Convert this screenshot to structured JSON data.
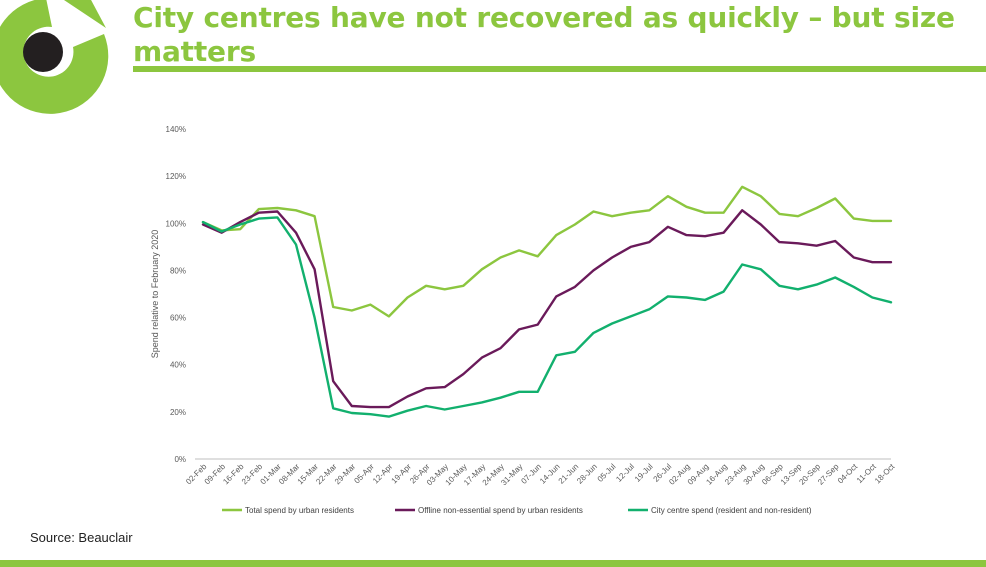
{
  "header": {
    "title": "City centres have not recovered as quickly – but size matters"
  },
  "footer": {
    "source": "Source: Beauclair"
  },
  "colors": {
    "accent": "#8cc63f",
    "total": "#8cc63f",
    "offline": "#6a1a5a",
    "city": "#12b06e",
    "logo_dark": "#231f20"
  },
  "icons": {
    "logo": "ring-logo-icon"
  },
  "chart_data": {
    "type": "line",
    "ylabel": "Spend relative to February 2020",
    "xlabel": "",
    "ylim": [
      0,
      140
    ],
    "yticks": [
      0,
      20,
      40,
      60,
      80,
      100,
      120,
      140
    ],
    "ytick_labels": [
      "0%",
      "20%",
      "40%",
      "60%",
      "80%",
      "100%",
      "120%",
      "140%"
    ],
    "grid": false,
    "legend_position": "bottom",
    "categories": [
      "02-Feb",
      "09-Feb",
      "16-Feb",
      "23-Feb",
      "01-Mar",
      "08-Mar",
      "15-Mar",
      "22-Mar",
      "29-Mar",
      "05-Apr",
      "12-Apr",
      "19-Apr",
      "26-Apr",
      "03-May",
      "10-May",
      "17-May",
      "24-May",
      "31-May",
      "07-Jun",
      "14-Jun",
      "21-Jun",
      "28-Jun",
      "05-Jul",
      "12-Jul",
      "19-Jul",
      "26-Jul",
      "02-Aug",
      "09-Aug",
      "16-Aug",
      "23-Aug",
      "30-Aug",
      "06-Sep",
      "13-Sep",
      "20-Sep",
      "27-Sep",
      "04-Oct",
      "11-Oct",
      "18-Oct"
    ],
    "series": [
      {
        "name": "Total spend by urban residents",
        "color": "#8cc63f",
        "values": [
          100.5,
          97,
          97.5,
          106,
          106.5,
          105.5,
          103,
          64.5,
          63,
          65.5,
          60.5,
          68.5,
          73.5,
          72,
          73.5,
          80.5,
          85.5,
          88.5,
          86,
          95,
          99.5,
          105,
          103,
          104.5,
          105.5,
          111.5,
          107,
          104.5,
          104.5,
          115.5,
          111.5,
          104,
          103,
          106.5,
          110.5,
          102,
          101,
          101
        ]
      },
      {
        "name": "Offline non-essential spend by urban residents",
        "color": "#6a1a5a",
        "values": [
          99.5,
          96,
          100.5,
          104.5,
          105,
          96,
          80.5,
          33,
          22.5,
          22,
          22,
          26.5,
          30,
          30.5,
          36,
          43,
          47,
          55,
          57,
          69,
          73,
          80,
          85.5,
          90,
          92,
          98.5,
          95,
          94.5,
          96,
          105.5,
          99.5,
          92,
          91.5,
          90.5,
          92.5,
          85.5,
          83.5,
          83.5
        ]
      },
      {
        "name": "City centre spend (resident and non-resident)",
        "color": "#12b06e",
        "values": [
          100.5,
          96.5,
          99.5,
          102,
          102.5,
          91,
          60,
          21.5,
          19.5,
          19,
          18,
          20.5,
          22.5,
          21,
          22.5,
          24,
          26,
          28.5,
          28.5,
          44,
          45.5,
          53.5,
          57.5,
          60.5,
          63.5,
          69,
          68.5,
          67.5,
          71,
          82.5,
          80.5,
          73.5,
          72,
          74,
          77,
          73,
          68.5,
          66.5
        ]
      }
    ]
  }
}
